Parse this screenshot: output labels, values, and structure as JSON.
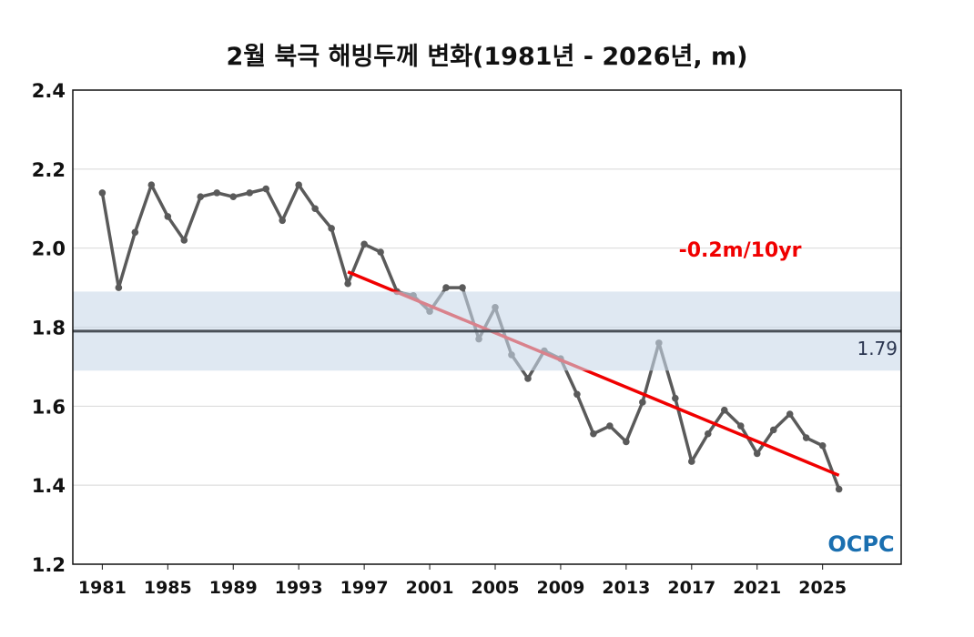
{
  "chart_data": {
    "type": "line",
    "title": "2월 북극 해빙두께 변화(1981년 - 2026년, m)",
    "xlabel": "",
    "ylabel": "",
    "xlim": [
      1979.2,
      2029.8
    ],
    "ylim": [
      1.2,
      2.4
    ],
    "yticks": [
      "1.2",
      "1.4",
      "1.6",
      "1.8",
      "2.0",
      "2.2",
      "2.4"
    ],
    "xticks": [
      "1981",
      "1985",
      "1989",
      "1993",
      "1997",
      "2001",
      "2005",
      "2009",
      "2013",
      "2017",
      "2021",
      "2025"
    ],
    "grid": true,
    "x": [
      1981,
      1982,
      1983,
      1984,
      1985,
      1986,
      1987,
      1988,
      1989,
      1990,
      1991,
      1992,
      1993,
      1994,
      1995,
      1996,
      1997,
      1998,
      1999,
      2000,
      2001,
      2002,
      2003,
      2004,
      2005,
      2006,
      2007,
      2008,
      2009,
      2010,
      2011,
      2012,
      2013,
      2014,
      2015,
      2016,
      2017,
      2018,
      2019,
      2020,
      2021,
      2022,
      2023,
      2024,
      2025,
      2026
    ],
    "values": [
      2.14,
      1.9,
      2.04,
      2.16,
      2.08,
      2.02,
      2.13,
      2.14,
      2.13,
      2.14,
      2.15,
      2.07,
      2.16,
      2.1,
      2.05,
      1.91,
      2.01,
      1.99,
      1.89,
      1.88,
      1.84,
      1.9,
      1.9,
      1.77,
      1.85,
      1.73,
      1.67,
      1.74,
      1.72,
      1.63,
      1.53,
      1.55,
      1.51,
      1.61,
      1.76,
      1.62,
      1.46,
      1.53,
      1.59,
      1.55,
      1.48,
      1.54,
      1.58,
      1.52,
      1.5,
      1.39
    ],
    "mean": {
      "value": 1.79,
      "label": "1.79",
      "band": [
        1.69,
        1.89
      ]
    },
    "trend": {
      "x": [
        1996,
        2026
      ],
      "y": [
        1.94,
        1.425
      ],
      "label": "-0.2m/10yr"
    },
    "colors": {
      "series": "#5a5a5a",
      "trend": "#f00000",
      "mean": "#4a5058",
      "band": "#c9d9ea",
      "trend_label": "#f00000"
    },
    "logo": "OCPC"
  }
}
